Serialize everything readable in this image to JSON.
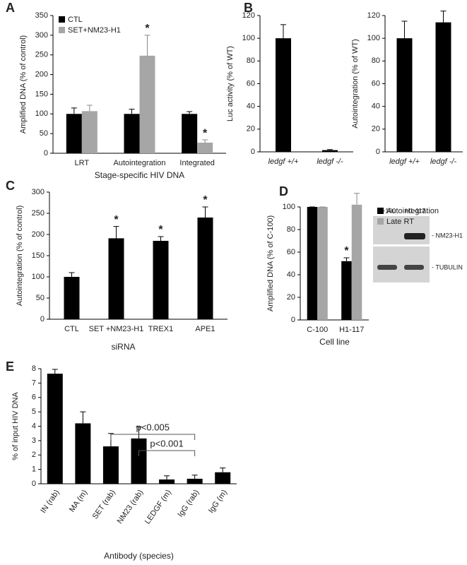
{
  "chart_data": [
    {
      "type": "bar",
      "panel": "A",
      "ylabel": "Amplified DNA (% of control)",
      "xlabel": "Stage-specific HIV DNA",
      "categories": [
        "LRT",
        "Autointegration",
        "Integrated"
      ],
      "series": [
        {
          "name": "CTL",
          "color": "#000000",
          "values": [
            100,
            100,
            100
          ],
          "errors": [
            15,
            12,
            6
          ]
        },
        {
          "name": "SET+NM23-H1",
          "color": "#a6a6a6",
          "values": [
            107,
            248,
            27
          ],
          "errors": [
            15,
            52,
            7
          ]
        }
      ],
      "annotations": [
        {
          "text": "*",
          "category": 1,
          "series": 1
        },
        {
          "text": "*",
          "category": 2,
          "series": 1
        }
      ],
      "ylim": [
        0,
        350
      ],
      "yticks": [
        0,
        50,
        100,
        150,
        200,
        250,
        300,
        350
      ],
      "legend": "top-left"
    },
    {
      "type": "bar",
      "panel": "B",
      "ylabel": "Luc activity (% of WT)",
      "categories": [
        "ledgf +/+",
        "ledgf -/-"
      ],
      "color": "#000000",
      "values": [
        100,
        1.5
      ],
      "errors": [
        12,
        0.5
      ],
      "ylim": [
        0,
        120
      ],
      "yticks": [
        0,
        20,
        40,
        60,
        80,
        100,
        120
      ]
    },
    {
      "type": "bar",
      "ylabel": "Autointegration (% of WT)",
      "categories": [
        "ledgf +/+",
        "ledgf -/-"
      ],
      "color": "#000000",
      "values": [
        100,
        114
      ],
      "errors": [
        15,
        10
      ],
      "ylim": [
        0,
        120
      ],
      "yticks": [
        0,
        20,
        40,
        60,
        80,
        100,
        120
      ]
    },
    {
      "type": "bar",
      "panel": "C",
      "ylabel": "Autointegration (% of control)",
      "xlabel": "siRNA",
      "categories": [
        "CTL",
        "SET +NM23-H1",
        "TREX1",
        "APE1"
      ],
      "color": "#000000",
      "values": [
        100,
        191,
        185,
        240
      ],
      "errors": [
        10,
        28,
        10,
        25
      ],
      "annotations": [
        {
          "text": "*",
          "category": 1
        },
        {
          "text": "*",
          "category": 2
        },
        {
          "text": "*",
          "category": 3
        }
      ],
      "ylim": [
        0,
        300
      ],
      "yticks": [
        0,
        50,
        100,
        150,
        200,
        250,
        300
      ]
    },
    {
      "type": "bar",
      "panel": "D",
      "ylabel": "Amplified DNA (% of C-100)",
      "xlabel": "Cell line",
      "categories": [
        "C-100",
        "H1-117"
      ],
      "series": [
        {
          "name": "Autointegration",
          "color": "#000000",
          "values": [
            100,
            52
          ],
          "errors": [
            0,
            3
          ]
        },
        {
          "name": "Late RT",
          "color": "#a6a6a6",
          "values": [
            100,
            102
          ],
          "errors": [
            0,
            10
          ]
        }
      ],
      "annotations": [
        {
          "text": "*",
          "category": 1,
          "series": 0
        }
      ],
      "ylim": [
        0,
        100
      ],
      "yticks": [
        0,
        20,
        40,
        60,
        80,
        100
      ],
      "legend": "top-right"
    },
    {
      "type": "bar",
      "panel": "E",
      "ylabel": "% of input HIV DNA",
      "xlabel": "Antibody (species)",
      "categories": [
        "IN (rab)",
        "MA (m)",
        "SET (rab)",
        "NM23 (rab)",
        "LEDGF (m)",
        "IgG (rab)",
        "IgG (m)"
      ],
      "color": "#000000",
      "values": [
        7.65,
        4.2,
        2.6,
        3.15,
        0.3,
        0.35,
        0.8
      ],
      "errors": [
        0.3,
        0.8,
        0.9,
        0.8,
        0.25,
        0.25,
        0.3
      ],
      "brackets": [
        {
          "from": 2,
          "to": 5,
          "label": "p<0.005"
        },
        {
          "from": 3,
          "to": 5,
          "label": "p<0.001"
        }
      ],
      "ylim": [
        0,
        8
      ],
      "yticks": [
        0,
        1,
        2,
        3,
        4,
        5,
        6,
        7,
        8
      ],
      "rotate_labels": true
    }
  ],
  "blot": {
    "lanes": [
      "C-100",
      "H1-117"
    ],
    "bands": [
      "- NM23-H1",
      "- TUBULIN"
    ]
  }
}
